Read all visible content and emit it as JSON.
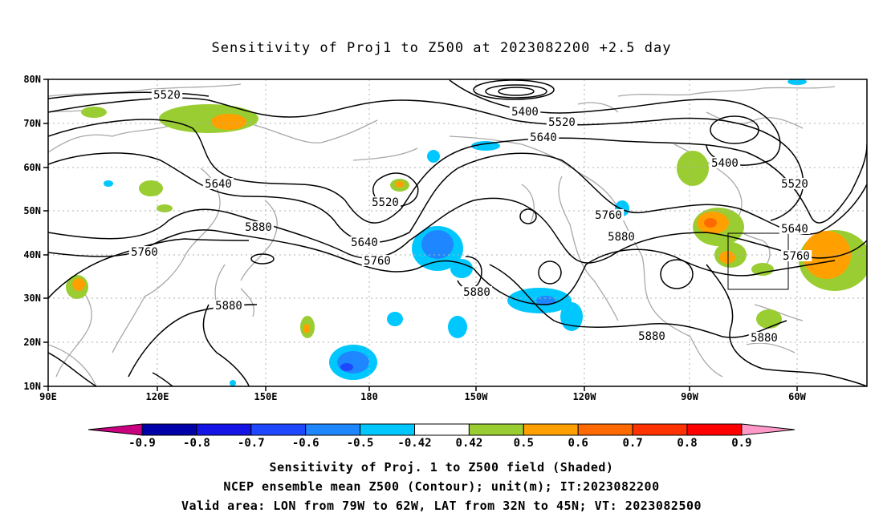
{
  "title": "Sensitivity of Proj1 to Z500 at 2023082200 +2.5 day",
  "captions": [
    "Sensitivity of Proj. 1 to Z500 field (Shaded)",
    "NCEP ensemble mean Z500 (Contour); unit(m); IT:2023082200",
    "Valid area: LON from 79W to 62W, LAT from 32N to 45N; VT: 2023082500"
  ],
  "map": {
    "lon_range": [
      "90E",
      "45W"
    ],
    "lat_range": [
      10,
      80
    ],
    "grid": true,
    "x_ticks": [
      "90E",
      "120E",
      "150E",
      "180",
      "150W",
      "120W",
      "90W",
      "60W"
    ],
    "y_ticks": [
      "10N",
      "20N",
      "30N",
      "40N",
      "50N",
      "60N",
      "70N",
      "80N"
    ]
  },
  "contour_labels": [
    "5520",
    "5400",
    "5520",
    "5640",
    "5640",
    "5520",
    "5400",
    "5520",
    "5880",
    "5760",
    "5640",
    "5760",
    "5760",
    "5880",
    "5640",
    "5760",
    "5880",
    "5880",
    "5880",
    "5880"
  ],
  "colorbar": {
    "labels": [
      "-0.9",
      "-0.8",
      "-0.7",
      "-0.6",
      "-0.5",
      "-0.42",
      "0.42",
      "0.5",
      "0.6",
      "0.7",
      "0.8",
      "0.9"
    ],
    "colors": [
      "#c8007f",
      "#0000a8",
      "#1414e6",
      "#1f47ff",
      "#1e87ff",
      "#00c8ff",
      "#ffffff",
      "#9acd32",
      "#ffa000",
      "#ff6a00",
      "#ff3200",
      "#ff0000",
      "#ff99c8"
    ]
  },
  "valid_area": {
    "lon": [
      "79W",
      "62W"
    ],
    "lat": [
      "32N",
      "45N"
    ]
  }
}
